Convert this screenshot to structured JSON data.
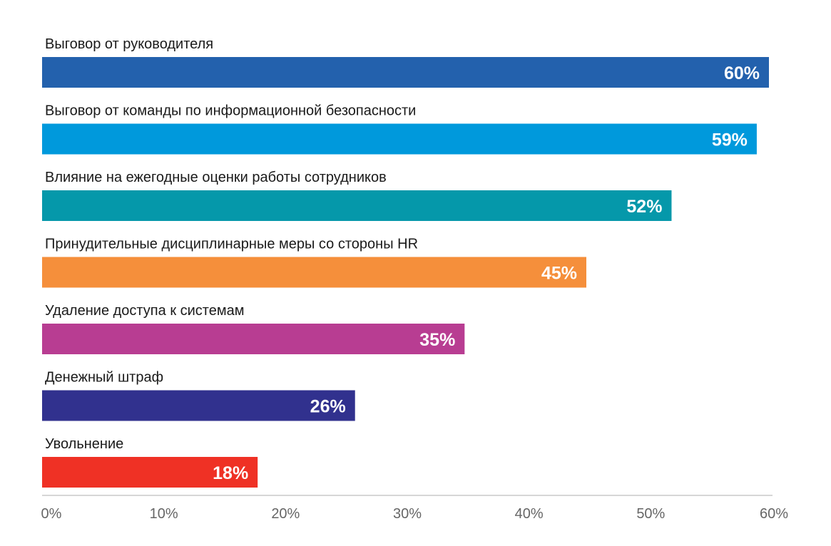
{
  "chart_data": {
    "type": "bar",
    "orientation": "horizontal",
    "categories": [
      "Выговор от руководителя",
      "Выговор от команды по информационной безопасности",
      "Влияние на ежегодные оценки работы сотрудников",
      "Принудительные дисциплинарные меры со стороны HR",
      "Удаление доступа к системам",
      "Денежный штраф",
      "Увольнение"
    ],
    "values": [
      60,
      59,
      52,
      45,
      35,
      26,
      18
    ],
    "value_labels": [
      "60%",
      "59%",
      "52%",
      "45%",
      "35%",
      "26%",
      "18%"
    ],
    "colors": [
      "#2361ad",
      "#0099dc",
      "#0598aa",
      "#f58f3b",
      "#b83d92",
      "#31318e",
      "#ef3125"
    ],
    "xlim": [
      0,
      60
    ],
    "x_ticks": [
      "0%",
      "10%",
      "20%",
      "30%",
      "40%",
      "50%",
      "60%"
    ],
    "grid": false,
    "legend": "none"
  }
}
